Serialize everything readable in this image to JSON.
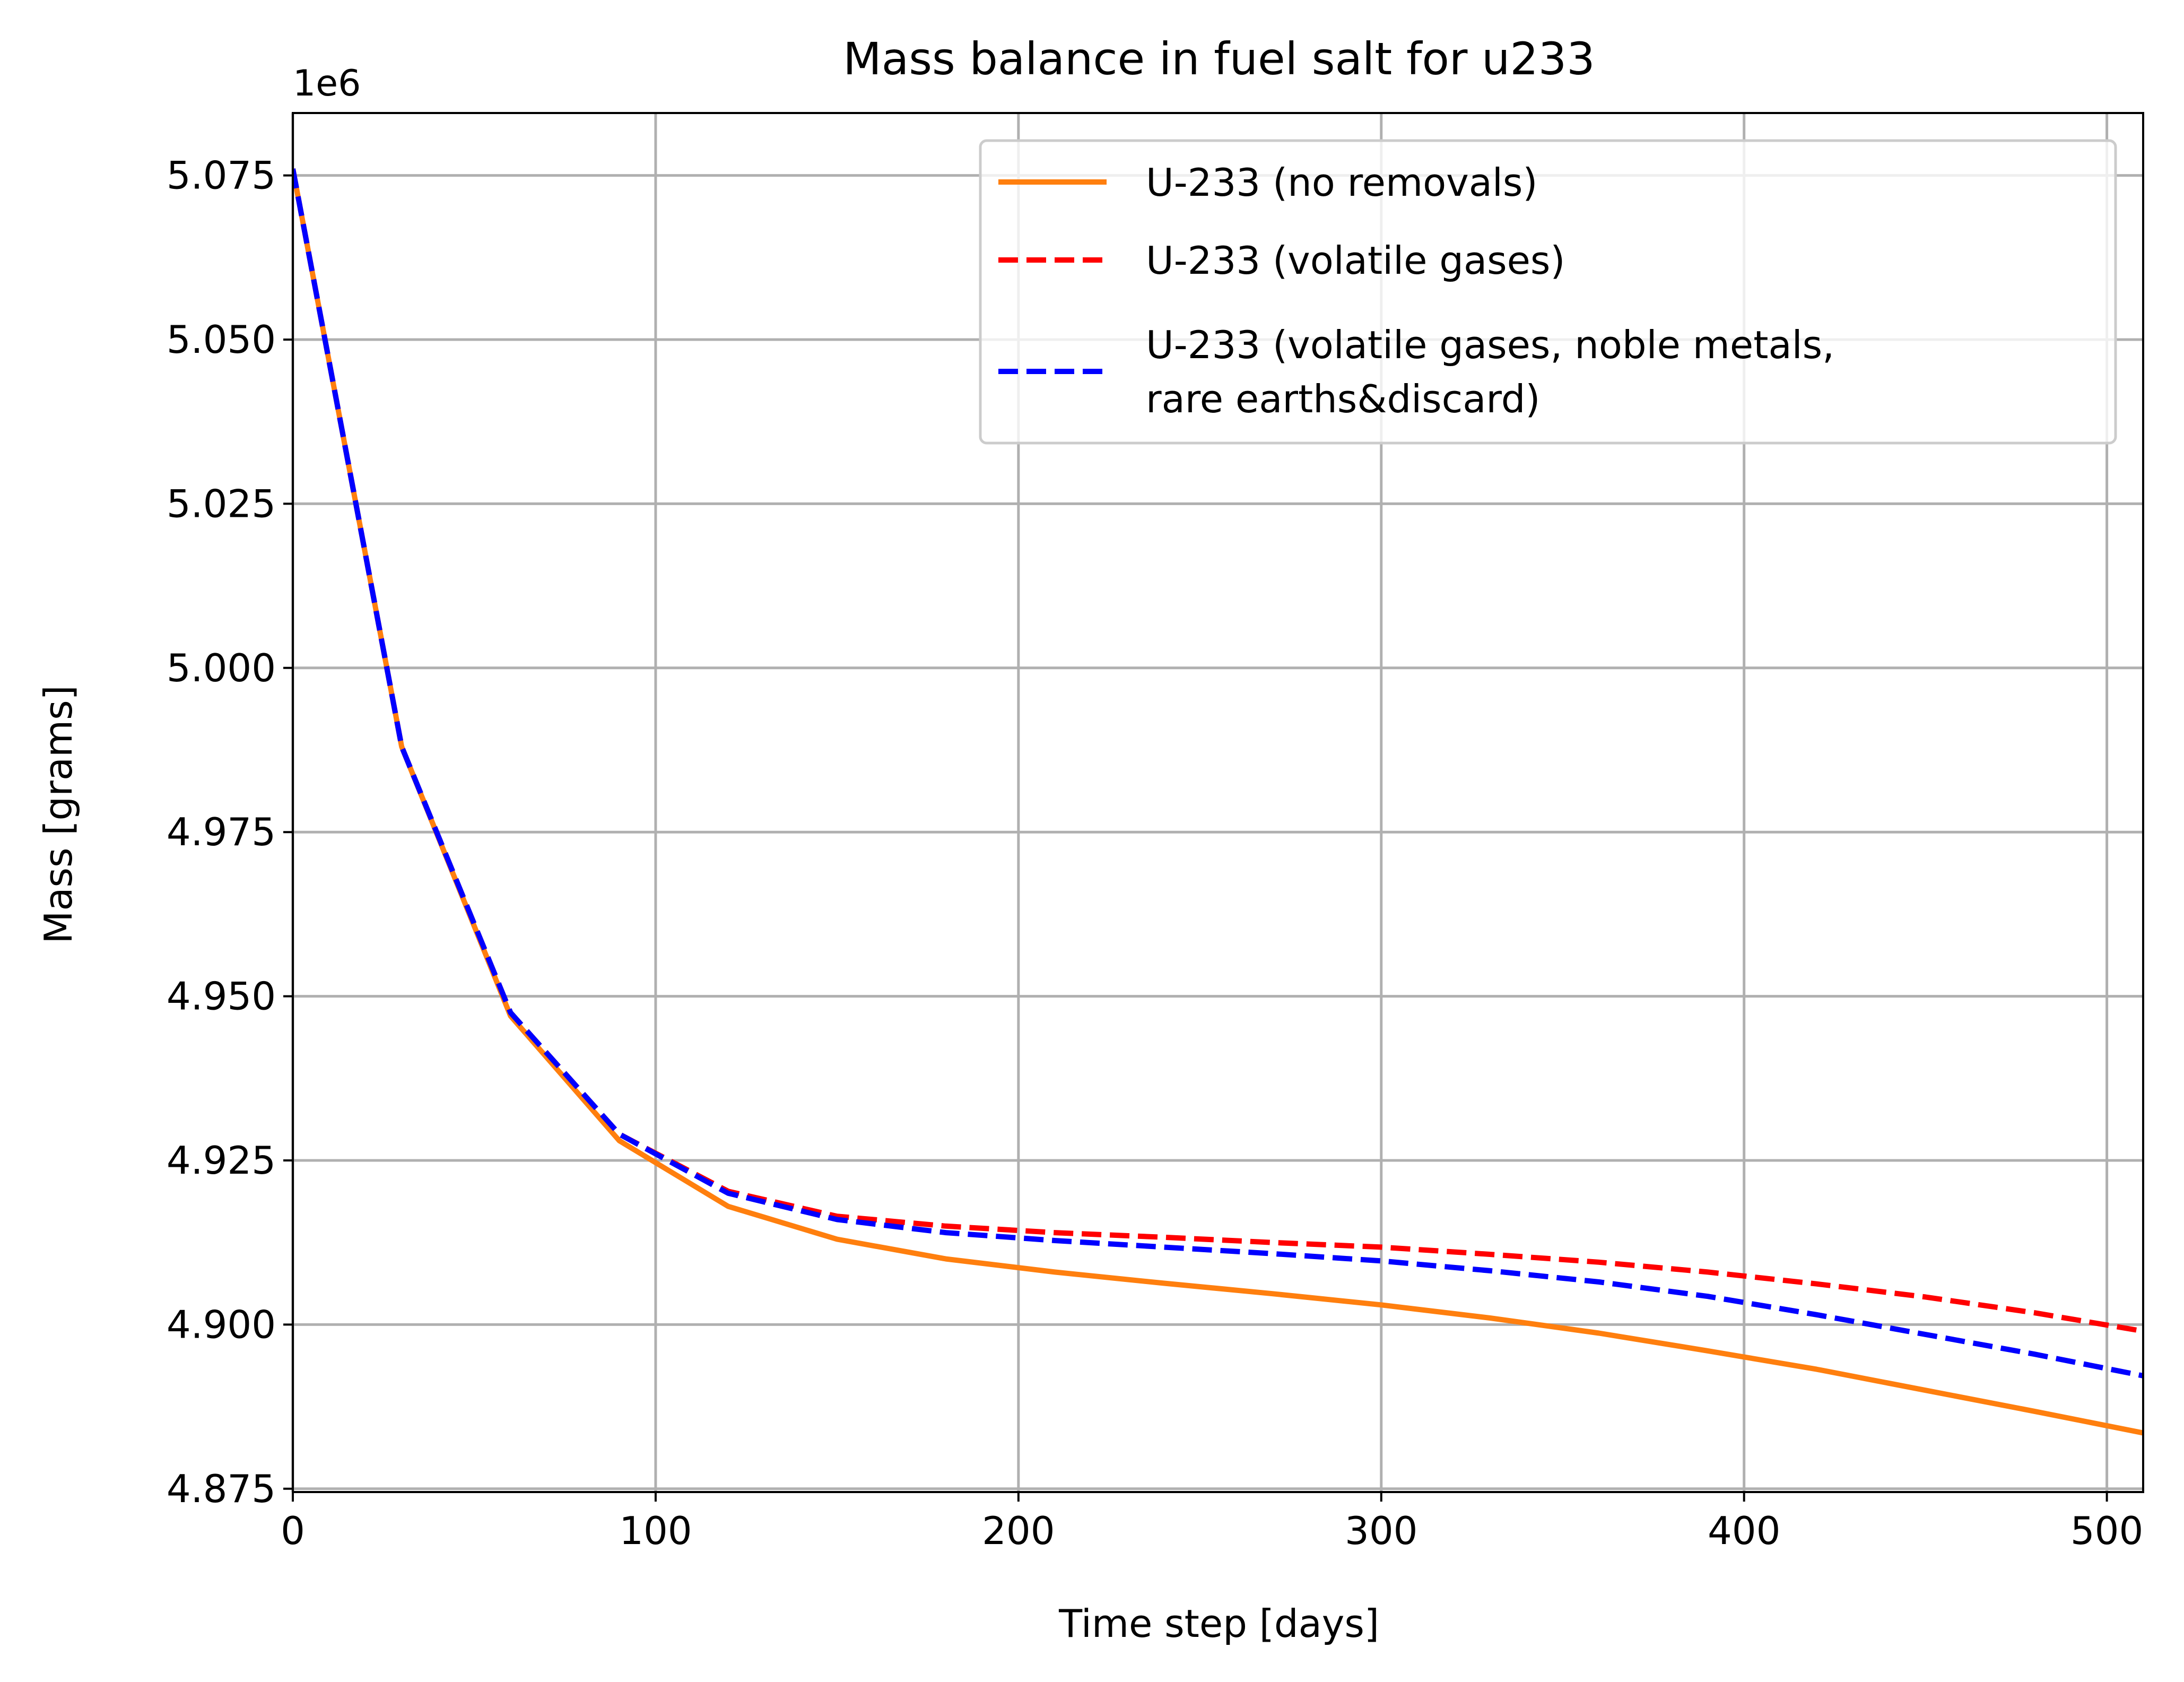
{
  "chart_data": {
    "type": "line",
    "title": "Mass balance in fuel salt for u233",
    "xlabel": "Time step [days]",
    "ylabel": "Mass [grams]",
    "y_offset_label": "1e6",
    "y_multiplier": 1000000,
    "xlim": [
      0,
      510
    ],
    "ylim": [
      4.8745,
      5.0845
    ],
    "x_ticks": [
      0,
      100,
      200,
      300,
      400,
      500
    ],
    "x_tick_labels": [
      "0",
      "100",
      "200",
      "300",
      "400",
      "500"
    ],
    "y_ticks": [
      4.875,
      4.9,
      4.925,
      4.95,
      4.975,
      5.0,
      5.025,
      5.05,
      5.075
    ],
    "y_tick_labels": [
      "4.875",
      "4.900",
      "4.925",
      "4.950",
      "4.975",
      "5.000",
      "5.025",
      "5.050",
      "5.075"
    ],
    "grid": true,
    "legend_position": "top-right",
    "series": [
      {
        "name": "U-233 (no removals)",
        "color": "#ff7f0e",
        "line_style": "solid",
        "x": [
          0,
          30,
          60,
          90,
          120,
          150,
          180,
          210,
          240,
          270,
          300,
          330,
          360,
          390,
          420,
          450,
          480,
          510
        ],
        "values": [
          5.076,
          4.988,
          4.947,
          4.928,
          4.918,
          4.913,
          4.91,
          4.908,
          4.9063,
          4.9047,
          4.903,
          4.901,
          4.8987,
          4.896,
          4.8932,
          4.89,
          4.8868,
          4.8835
        ]
      },
      {
        "name": "U-233 (volatile gases)",
        "color": "#ff0000",
        "line_style": "dashed",
        "x": [
          0,
          30,
          60,
          90,
          120,
          150,
          180,
          210,
          240,
          270,
          300,
          330,
          360,
          390,
          420,
          450,
          480,
          510
        ],
        "values": [
          5.076,
          4.988,
          4.9475,
          4.929,
          4.9203,
          4.9165,
          4.915,
          4.914,
          4.9133,
          4.9125,
          4.9118,
          4.9107,
          4.9095,
          4.908,
          4.9062,
          4.9042,
          4.9018,
          4.899
        ]
      },
      {
        "name": "U-233 (volatile gases, noble metals, rare earths&discard)",
        "color": "#0000ff",
        "line_style": "dashed",
        "x": [
          0,
          30,
          60,
          90,
          120,
          150,
          180,
          210,
          240,
          270,
          300,
          330,
          360,
          390,
          420,
          450,
          480,
          510
        ],
        "values": [
          5.076,
          4.988,
          4.9475,
          4.929,
          4.92,
          4.916,
          4.914,
          4.9128,
          4.9118,
          4.9108,
          4.9097,
          4.9082,
          4.9065,
          4.9043,
          4.9015,
          4.8985,
          4.8955,
          4.8922
        ]
      }
    ],
    "legend_entries": [
      {
        "lines": [
          "U-233 (no removals)"
        ]
      },
      {
        "lines": [
          "U-233 (volatile gases)"
        ]
      },
      {
        "lines": [
          "U-233 (volatile gases, noble metals,",
          "rare earths&discard)"
        ]
      }
    ]
  }
}
